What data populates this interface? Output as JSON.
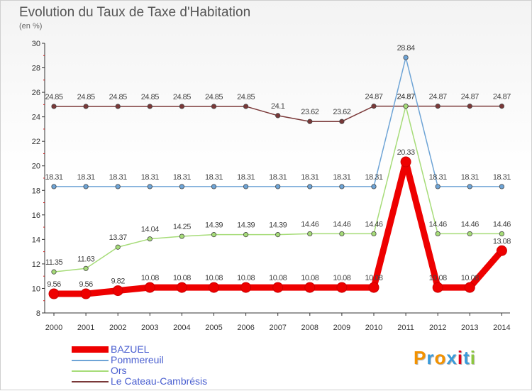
{
  "header": {
    "title": "Evolution du Taux de Taxe d'Habitation",
    "subtitle": "(en %)"
  },
  "chart_data": {
    "type": "line",
    "title": "Evolution du Taux de Taxe d'Habitation",
    "ylabel": "(en %)",
    "xlabel": "",
    "x": [
      "2000",
      "2001",
      "2002",
      "2003",
      "2004",
      "2005",
      "2006",
      "2007",
      "2008",
      "2009",
      "2010",
      "2011",
      "2012",
      "2013",
      "2014"
    ],
    "ylim": [
      8,
      30
    ],
    "yticks": [
      8,
      10,
      12,
      14,
      16,
      18,
      20,
      22,
      24,
      26,
      28,
      30
    ],
    "grid": false,
    "legend_position": "bottom-left",
    "series": [
      {
        "name": "BAZUEL",
        "color": "#ee0000",
        "values": [
          9.56,
          9.56,
          9.82,
          10.08,
          10.08,
          10.08,
          10.08,
          10.08,
          10.08,
          10.08,
          10.08,
          20.33,
          10.08,
          10.08,
          13.08
        ],
        "labels": [
          "9.56",
          "9.56",
          "9.82",
          "10.08",
          "10.08",
          "10.08",
          "10.08",
          "10.08",
          "10.08",
          "10.08",
          "10.08",
          "20.33",
          "10.08",
          "10.08",
          "13.08"
        ]
      },
      {
        "name": "Pommereuil",
        "color": "#6ea4d6",
        "values": [
          18.31,
          18.31,
          18.31,
          18.31,
          18.31,
          18.31,
          18.31,
          18.31,
          18.31,
          18.31,
          18.31,
          28.84,
          18.31,
          18.31,
          18.31
        ],
        "labels": [
          "18.31",
          "18.31",
          "18.31",
          "18.31",
          "18.31",
          "18.31",
          "18.31",
          "18.31",
          "18.31",
          "18.31",
          "18.31",
          "28.84",
          "18.31",
          "18.31",
          "18.31"
        ]
      },
      {
        "name": "Ors",
        "color": "#a6dc78",
        "values": [
          11.35,
          11.63,
          13.37,
          14.04,
          14.25,
          14.39,
          14.39,
          14.39,
          14.46,
          14.46,
          14.46,
          24.87,
          14.46,
          14.46,
          14.46
        ],
        "labels": [
          "11.35",
          "11.63",
          "13.37",
          "14.04",
          "14.25",
          "14.39",
          "14.39",
          "14.39",
          "14.46",
          "14.46",
          "14.46",
          "24.87",
          "14.46",
          "14.46",
          "14.46"
        ]
      },
      {
        "name": "Le Cateau-Cambrésis",
        "color": "#7a3838",
        "values": [
          24.85,
          24.85,
          24.85,
          24.85,
          24.85,
          24.85,
          24.85,
          24.1,
          23.62,
          23.62,
          24.87,
          24.87,
          24.87,
          24.87,
          24.87
        ],
        "labels": [
          "24.85",
          "24.85",
          "24.85",
          "24.85",
          "24.85",
          "24.85",
          "24.85",
          "24.1",
          "23.62",
          "23.62",
          "24.87",
          "24.87",
          "24.87",
          "24.87",
          "24.87"
        ]
      }
    ]
  },
  "legend": {
    "items": [
      {
        "label": "BAZUEL",
        "color": "#ee0000"
      },
      {
        "label": "Pommereuil",
        "color": "#6ea4d6"
      },
      {
        "label": "Ors",
        "color": "#a6dc78"
      },
      {
        "label": "Le Cateau-Cambrésis",
        "color": "#7a3838"
      }
    ]
  },
  "brand": {
    "text": "Proxiti",
    "colors": [
      "#f39200",
      "#3a9ad9",
      "#f39200",
      "#3a9ad9",
      "#e2001a",
      "#3a9ad9",
      "#8dc63f"
    ]
  }
}
